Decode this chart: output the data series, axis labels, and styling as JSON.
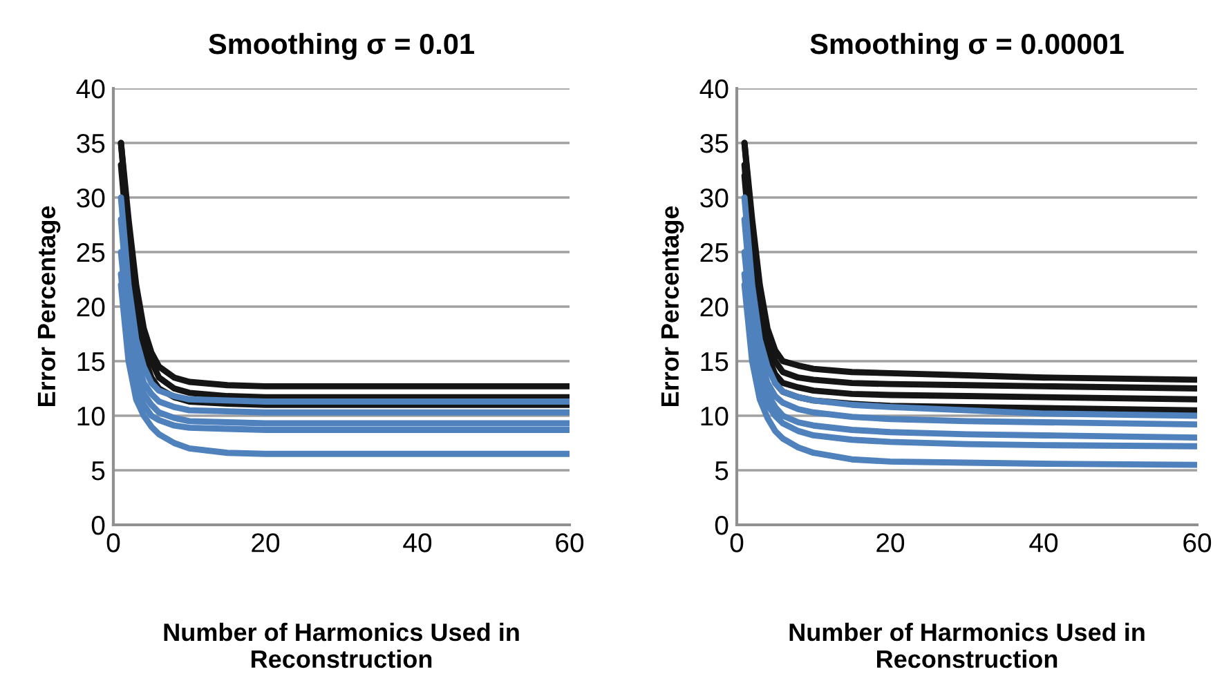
{
  "chart_data": [
    {
      "type": "line",
      "title": "Smoothing σ = 0.01",
      "xlabel": "Number of Harmonics Used in\nReconstruction",
      "ylabel": "Error Percentage",
      "x": [
        1,
        2,
        3,
        4,
        5,
        6,
        8,
        10,
        15,
        20,
        30,
        40,
        60
      ],
      "xlim": [
        0,
        60
      ],
      "xticks": [
        0,
        20,
        40,
        60
      ],
      "ylim": [
        0,
        40
      ],
      "yticks": [
        0,
        5,
        10,
        15,
        20,
        25,
        30,
        35,
        40
      ],
      "grid": "y",
      "marker": "none",
      "line_style": "solid",
      "series": [
        {
          "color": "#151515",
          "values": [
            35,
            28,
            22,
            18,
            15.8,
            14.5,
            13.5,
            13.1,
            12.8,
            12.7,
            12.7,
            12.7,
            12.7
          ]
        },
        {
          "color": "#151515",
          "values": [
            35,
            27,
            21,
            17,
            15,
            13.5,
            12.5,
            12.1,
            11.8,
            11.7,
            11.7,
            11.7,
            11.7
          ]
        },
        {
          "color": "#151515",
          "values": [
            33,
            25,
            19,
            15.5,
            13.5,
            12.5,
            11.7,
            11.3,
            11.1,
            11.0,
            11.0,
            11.0,
            11.0
          ]
        },
        {
          "color": "#4f81bd",
          "values": [
            30,
            22,
            17,
            14.5,
            13,
            12.3,
            11.8,
            11.5,
            11.4,
            11.3,
            11.3,
            11.3,
            11.3
          ]
        },
        {
          "color": "#4f81bd",
          "values": [
            28,
            20,
            15.5,
            13,
            12,
            11.3,
            10.8,
            10.5,
            10.4,
            10.3,
            10.3,
            10.3,
            10.3
          ]
        },
        {
          "color": "#4f81bd",
          "values": [
            25,
            18,
            14,
            12,
            11,
            10.3,
            9.8,
            9.5,
            9.4,
            9.3,
            9.3,
            9.3,
            9.3
          ]
        },
        {
          "color": "#4f81bd",
          "values": [
            23,
            16,
            12.5,
            11,
            10,
            9.6,
            9.1,
            8.9,
            8.8,
            8.7,
            8.7,
            8.7,
            8.7
          ]
        },
        {
          "color": "#4f81bd",
          "values": [
            22,
            15,
            11.5,
            10,
            9,
            8.3,
            7.5,
            7.0,
            6.6,
            6.5,
            6.5,
            6.5,
            6.5
          ]
        }
      ]
    },
    {
      "type": "line",
      "title": "Smoothing σ = 0.00001",
      "xlabel": "Number of Harmonics Used in\nReconstruction",
      "ylabel": "Error Percentage",
      "x": [
        1,
        2,
        3,
        4,
        5,
        6,
        8,
        10,
        15,
        20,
        30,
        40,
        60
      ],
      "xlim": [
        0,
        60
      ],
      "xticks": [
        0,
        20,
        40,
        60
      ],
      "ylim": [
        0,
        40
      ],
      "yticks": [
        0,
        5,
        10,
        15,
        20,
        25,
        30,
        35,
        40
      ],
      "grid": "y",
      "marker": "none",
      "line_style": "solid",
      "series": [
        {
          "color": "#151515",
          "values": [
            35,
            28,
            22,
            18,
            16,
            15,
            14.6,
            14.3,
            14,
            13.9,
            13.7,
            13.5,
            13.3
          ]
        },
        {
          "color": "#151515",
          "values": [
            35,
            27,
            21,
            17,
            15,
            14,
            13.5,
            13.3,
            13,
            12.9,
            12.8,
            12.7,
            12.5
          ]
        },
        {
          "color": "#151515",
          "values": [
            33,
            25,
            19,
            15.5,
            13.8,
            13,
            12.6,
            12.3,
            12,
            11.9,
            11.8,
            11.7,
            11.5
          ]
        },
        {
          "color": "#151515",
          "values": [
            32,
            24,
            18,
            15,
            13,
            12.2,
            11.7,
            11.4,
            11.1,
            10.9,
            10.8,
            10.7,
            10.5
          ]
        },
        {
          "color": "#4f81bd",
          "values": [
            30,
            22,
            17,
            14.5,
            13,
            12.2,
            11.7,
            11.4,
            11,
            10.8,
            10.5,
            10.2,
            10.0
          ]
        },
        {
          "color": "#4f81bd",
          "values": [
            28,
            20,
            15.5,
            13,
            11.8,
            11.2,
            10.6,
            10.3,
            9.9,
            9.7,
            9.5,
            9.4,
            9.2
          ]
        },
        {
          "color": "#4f81bd",
          "values": [
            25,
            18,
            14,
            12,
            10.8,
            10,
            9.4,
            9.1,
            8.7,
            8.5,
            8.3,
            8.2,
            8.0
          ]
        },
        {
          "color": "#4f81bd",
          "values": [
            23,
            16,
            12.5,
            11,
            10,
            9.3,
            8.6,
            8.2,
            7.8,
            7.6,
            7.4,
            7.3,
            7.2
          ]
        },
        {
          "color": "#4f81bd",
          "values": [
            22,
            15,
            11.5,
            9.8,
            8.6,
            7.9,
            7.1,
            6.6,
            6.0,
            5.8,
            5.7,
            5.6,
            5.5
          ]
        }
      ]
    }
  ]
}
